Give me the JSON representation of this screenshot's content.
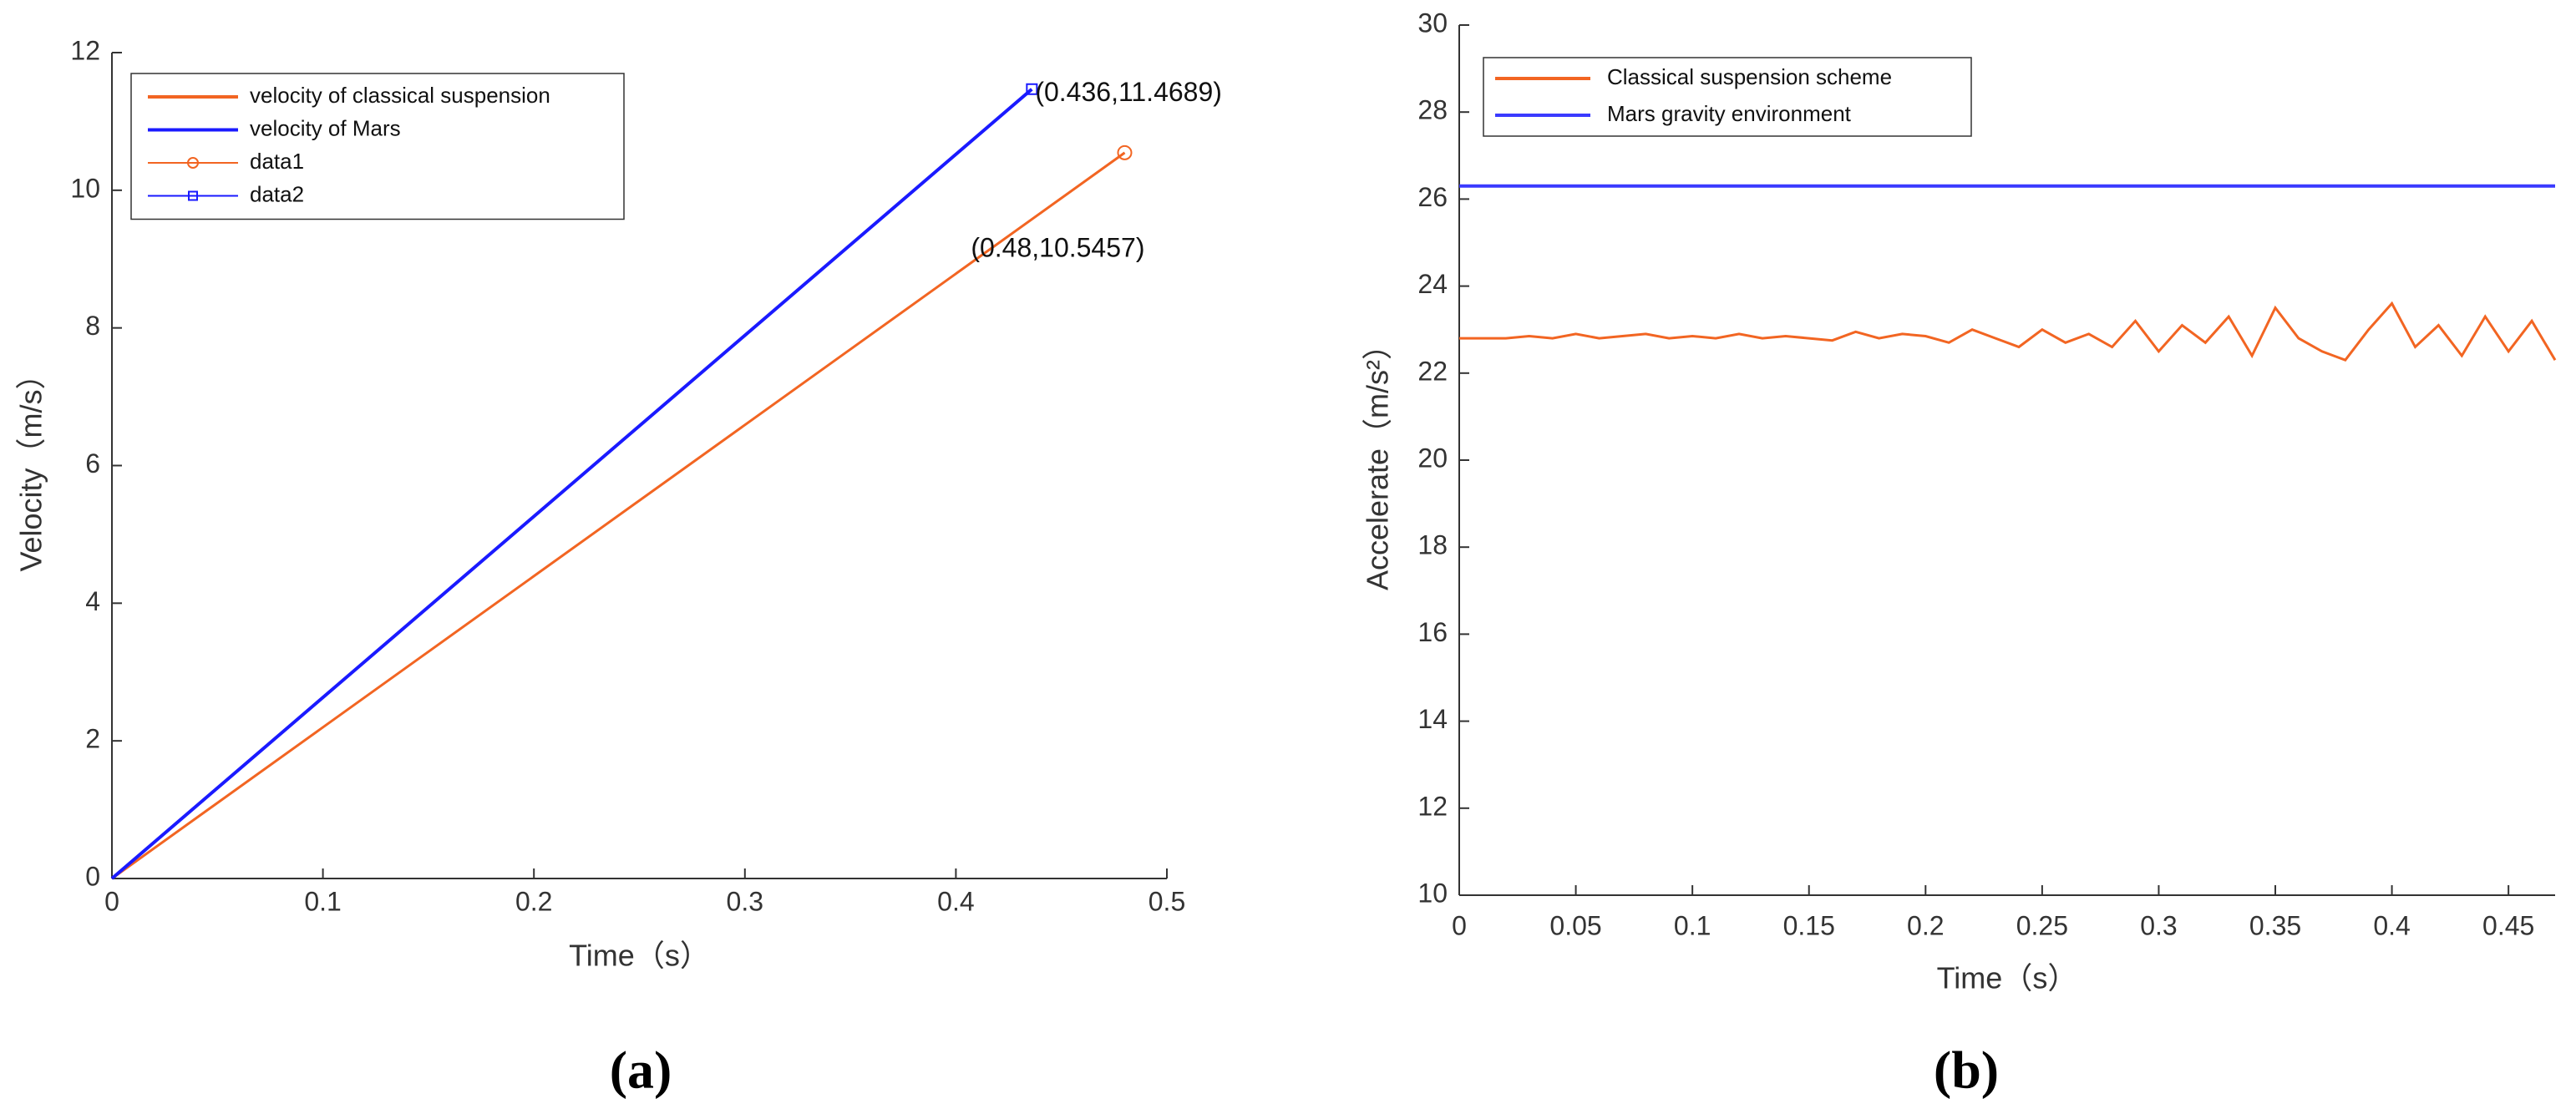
{
  "chart_data": [
    {
      "type": "line",
      "panel": "(a)",
      "xlabel": "Time（s）",
      "ylabel": "Velocity（m/s）",
      "xlim": [
        0,
        0.5
      ],
      "xticks": [
        0,
        0.1,
        0.2,
        0.3,
        0.4,
        0.5
      ],
      "ylim": [
        0,
        12
      ],
      "yticks": [
        0,
        2,
        4,
        6,
        8,
        10,
        12
      ],
      "series": [
        {
          "name": "velocity of classical suspension",
          "color": "#f26522",
          "x": [
            0,
            0.48
          ],
          "values": [
            0,
            10.5457
          ]
        },
        {
          "name": "velocity of Mars",
          "color": "#1a1aff",
          "x": [
            0,
            0.436
          ],
          "values": [
            0,
            11.4689
          ]
        },
        {
          "name": "data1",
          "color": "#f26522",
          "marker": "circle",
          "x": [
            0.48
          ],
          "values": [
            10.5457
          ],
          "label": "(0.48,10.5457)"
        },
        {
          "name": "data2",
          "color": "#1a1aff",
          "marker": "square",
          "x": [
            0.436
          ],
          "values": [
            11.4689
          ],
          "label": "(0.436,11.4689)"
        }
      ]
    },
    {
      "type": "line",
      "panel": "(b)",
      "xlabel": "Time（s）",
      "ylabel": "Accelerate（m/s²）",
      "xlim": [
        0,
        0.47
      ],
      "xticks": [
        0,
        0.05,
        0.1,
        0.15,
        0.2,
        0.25,
        0.3,
        0.35,
        0.4,
        0.45
      ],
      "ylim": [
        10,
        30
      ],
      "yticks": [
        10,
        12,
        14,
        16,
        18,
        20,
        22,
        24,
        26,
        28,
        30
      ],
      "series": [
        {
          "name": "Classical suspension scheme",
          "color": "#f26522",
          "x": [
            0,
            0.01,
            0.02,
            0.03,
            0.04,
            0.05,
            0.06,
            0.07,
            0.08,
            0.09,
            0.1,
            0.11,
            0.12,
            0.13,
            0.14,
            0.15,
            0.16,
            0.17,
            0.18,
            0.19,
            0.2,
            0.21,
            0.22,
            0.23,
            0.24,
            0.25,
            0.26,
            0.27,
            0.28,
            0.29,
            0.3,
            0.31,
            0.32,
            0.33,
            0.34,
            0.35,
            0.36,
            0.37,
            0.38,
            0.39,
            0.4,
            0.41,
            0.42,
            0.43,
            0.44,
            0.45,
            0.46,
            0.47
          ],
          "values": [
            22.8,
            22.8,
            22.8,
            22.85,
            22.8,
            22.9,
            22.8,
            22.85,
            22.9,
            22.8,
            22.85,
            22.8,
            22.9,
            22.8,
            22.85,
            22.8,
            22.75,
            22.95,
            22.8,
            22.9,
            22.85,
            22.7,
            23.0,
            22.8,
            22.6,
            23.0,
            22.7,
            22.9,
            22.6,
            23.2,
            22.5,
            23.1,
            22.7,
            23.3,
            22.4,
            23.5,
            22.8,
            22.5,
            22.3,
            23.0,
            23.6,
            22.6,
            23.1,
            22.4,
            23.3,
            22.5,
            23.2,
            22.3
          ]
        },
        {
          "name": "Mars gravity environment",
          "color": "#3a3aff",
          "x": [
            0,
            0.47
          ],
          "values": [
            26.3,
            26.3
          ]
        }
      ]
    }
  ]
}
